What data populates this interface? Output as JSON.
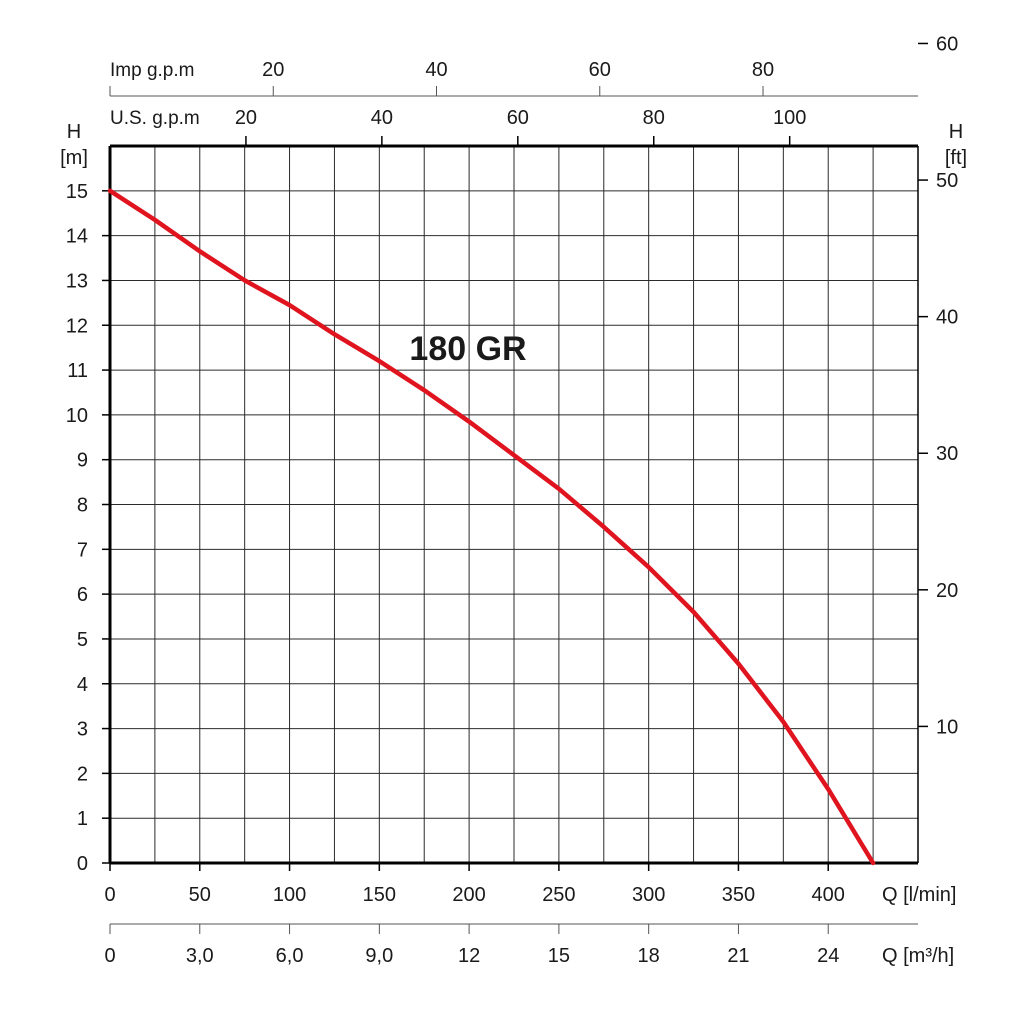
{
  "chart_data": {
    "type": "line",
    "title": "180 GR",
    "series": [
      {
        "name": "180 GR",
        "color": "#e0141e",
        "x": [
          0,
          25,
          50,
          75,
          100,
          125,
          150,
          175,
          200,
          225,
          250,
          275,
          300,
          325,
          350,
          375,
          400,
          425
        ],
        "y": [
          15.0,
          14.35,
          13.65,
          13.0,
          12.45,
          11.8,
          11.2,
          10.55,
          9.85,
          9.1,
          8.35,
          7.5,
          6.6,
          5.6,
          4.45,
          3.15,
          1.65,
          0.0
        ]
      }
    ],
    "x_axis": {
      "label": "Q [l/min]",
      "range": [
        0,
        450
      ],
      "ticks": [
        "0",
        "50",
        "100",
        "150",
        "200",
        "250",
        "300",
        "350",
        "400"
      ],
      "tick_values": [
        0,
        50,
        100,
        150,
        200,
        250,
        300,
        350,
        400
      ]
    },
    "x_axis_m3h": {
      "label": "Q [m³/h]",
      "ticks": [
        "0",
        "3,0",
        "6,0",
        "9,0",
        "12",
        "15",
        "18",
        "21",
        "24"
      ],
      "tick_values": [
        0,
        3,
        6,
        9,
        12,
        15,
        18,
        21,
        24
      ]
    },
    "y_axis": {
      "label_top": "H",
      "unit": "[m]",
      "range": [
        0,
        16
      ],
      "ticks": [
        "0",
        "1",
        "2",
        "3",
        "4",
        "5",
        "6",
        "7",
        "8",
        "9",
        "10",
        "11",
        "12",
        "13",
        "14",
        "15"
      ],
      "tick_values": [
        0,
        1,
        2,
        3,
        4,
        5,
        6,
        7,
        8,
        9,
        10,
        11,
        12,
        13,
        14,
        15
      ]
    },
    "y_axis_ft": {
      "label_top": "H",
      "unit": "[ft]",
      "ticks": [
        "10",
        "20",
        "30",
        "40",
        "50",
        "60"
      ],
      "tick_values": [
        10,
        20,
        30,
        40,
        50,
        60
      ]
    },
    "imp_gpm_axis": {
      "label": "Imp g.p.m",
      "ticks": [
        "20",
        "40",
        "60",
        "80"
      ],
      "tick_values": [
        20,
        40,
        60,
        80
      ]
    },
    "us_gpm_axis": {
      "label": "U.S. g.p.m",
      "ticks": [
        "20",
        "40",
        "60",
        "80",
        "100"
      ],
      "tick_values": [
        20,
        40,
        60,
        80,
        100
      ]
    },
    "grid": true
  }
}
